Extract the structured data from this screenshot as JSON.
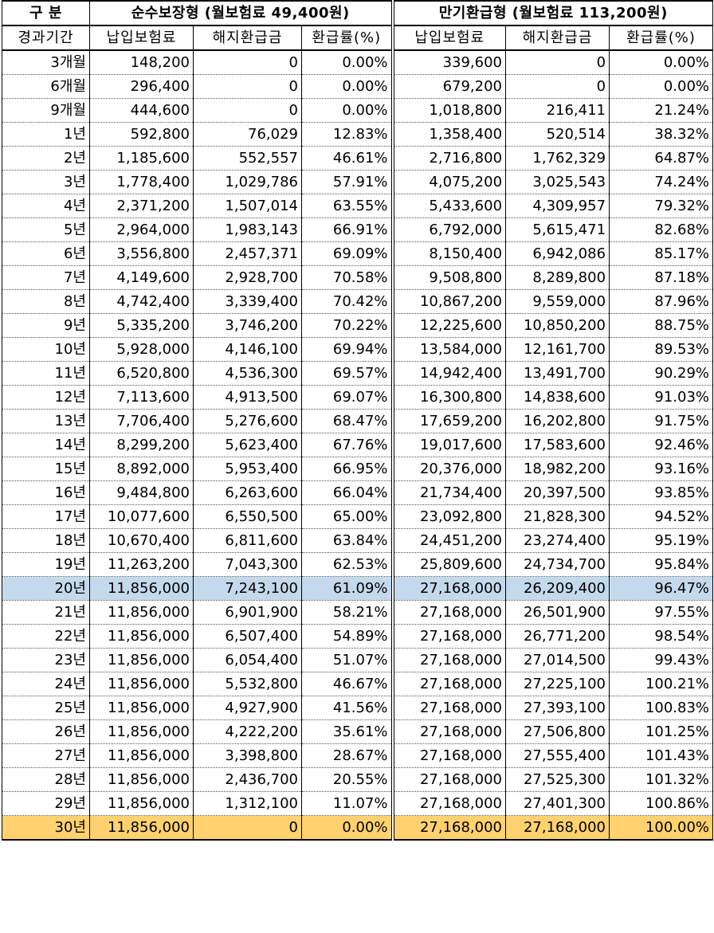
{
  "header": {
    "category_label": "구 분",
    "plan1_title": "순수보장형 (월보험료 49,400원)",
    "plan2_title": "만기환급형 (월보험료 113,200원)",
    "period_label": "경과기간",
    "plan1_cols": [
      "납입보험료",
      "해지환급금",
      "환급률(%)"
    ],
    "plan2_cols": [
      "납입보험료",
      "해지환급금",
      "환급률(%)"
    ]
  },
  "highlight_colors": {
    "row_20y": "#c5d9ec",
    "row_30y": "#ffd16f"
  },
  "rows": [
    {
      "period": "3개월",
      "p1_paid": "148,200",
      "p1_refund": "0",
      "p1_rate": "0.00%",
      "p2_paid": "339,600",
      "p2_refund": "0",
      "p2_rate": "0.00%"
    },
    {
      "period": "6개월",
      "p1_paid": "296,400",
      "p1_refund": "0",
      "p1_rate": "0.00%",
      "p2_paid": "679,200",
      "p2_refund": "0",
      "p2_rate": "0.00%"
    },
    {
      "period": "9개월",
      "p1_paid": "444,600",
      "p1_refund": "0",
      "p1_rate": "0.00%",
      "p2_paid": "1,018,800",
      "p2_refund": "216,411",
      "p2_rate": "21.24%"
    },
    {
      "period": "1년",
      "p1_paid": "592,800",
      "p1_refund": "76,029",
      "p1_rate": "12.83%",
      "p2_paid": "1,358,400",
      "p2_refund": "520,514",
      "p2_rate": "38.32%"
    },
    {
      "period": "2년",
      "p1_paid": "1,185,600",
      "p1_refund": "552,557",
      "p1_rate": "46.61%",
      "p2_paid": "2,716,800",
      "p2_refund": "1,762,329",
      "p2_rate": "64.87%"
    },
    {
      "period": "3년",
      "p1_paid": "1,778,400",
      "p1_refund": "1,029,786",
      "p1_rate": "57.91%",
      "p2_paid": "4,075,200",
      "p2_refund": "3,025,543",
      "p2_rate": "74.24%"
    },
    {
      "period": "4년",
      "p1_paid": "2,371,200",
      "p1_refund": "1,507,014",
      "p1_rate": "63.55%",
      "p2_paid": "5,433,600",
      "p2_refund": "4,309,957",
      "p2_rate": "79.32%"
    },
    {
      "period": "5년",
      "p1_paid": "2,964,000",
      "p1_refund": "1,983,143",
      "p1_rate": "66.91%",
      "p2_paid": "6,792,000",
      "p2_refund": "5,615,471",
      "p2_rate": "82.68%"
    },
    {
      "period": "6년",
      "p1_paid": "3,556,800",
      "p1_refund": "2,457,371",
      "p1_rate": "69.09%",
      "p2_paid": "8,150,400",
      "p2_refund": "6,942,086",
      "p2_rate": "85.17%"
    },
    {
      "period": "7년",
      "p1_paid": "4,149,600",
      "p1_refund": "2,928,700",
      "p1_rate": "70.58%",
      "p2_paid": "9,508,800",
      "p2_refund": "8,289,800",
      "p2_rate": "87.18%"
    },
    {
      "period": "8년",
      "p1_paid": "4,742,400",
      "p1_refund": "3,339,400",
      "p1_rate": "70.42%",
      "p2_paid": "10,867,200",
      "p2_refund": "9,559,000",
      "p2_rate": "87.96%"
    },
    {
      "period": "9년",
      "p1_paid": "5,335,200",
      "p1_refund": "3,746,200",
      "p1_rate": "70.22%",
      "p2_paid": "12,225,600",
      "p2_refund": "10,850,200",
      "p2_rate": "88.75%"
    },
    {
      "period": "10년",
      "p1_paid": "5,928,000",
      "p1_refund": "4,146,100",
      "p1_rate": "69.94%",
      "p2_paid": "13,584,000",
      "p2_refund": "12,161,700",
      "p2_rate": "89.53%"
    },
    {
      "period": "11년",
      "p1_paid": "6,520,800",
      "p1_refund": "4,536,300",
      "p1_rate": "69.57%",
      "p2_paid": "14,942,400",
      "p2_refund": "13,491,700",
      "p2_rate": "90.29%"
    },
    {
      "period": "12년",
      "p1_paid": "7,113,600",
      "p1_refund": "4,913,500",
      "p1_rate": "69.07%",
      "p2_paid": "16,300,800",
      "p2_refund": "14,838,600",
      "p2_rate": "91.03%"
    },
    {
      "period": "13년",
      "p1_paid": "7,706,400",
      "p1_refund": "5,276,600",
      "p1_rate": "68.47%",
      "p2_paid": "17,659,200",
      "p2_refund": "16,202,800",
      "p2_rate": "91.75%"
    },
    {
      "period": "14년",
      "p1_paid": "8,299,200",
      "p1_refund": "5,623,400",
      "p1_rate": "67.76%",
      "p2_paid": "19,017,600",
      "p2_refund": "17,583,600",
      "p2_rate": "92.46%"
    },
    {
      "period": "15년",
      "p1_paid": "8,892,000",
      "p1_refund": "5,953,400",
      "p1_rate": "66.95%",
      "p2_paid": "20,376,000",
      "p2_refund": "18,982,200",
      "p2_rate": "93.16%"
    },
    {
      "period": "16년",
      "p1_paid": "9,484,800",
      "p1_refund": "6,263,600",
      "p1_rate": "66.04%",
      "p2_paid": "21,734,400",
      "p2_refund": "20,397,500",
      "p2_rate": "93.85%"
    },
    {
      "period": "17년",
      "p1_paid": "10,077,600",
      "p1_refund": "6,550,500",
      "p1_rate": "65.00%",
      "p2_paid": "23,092,800",
      "p2_refund": "21,828,300",
      "p2_rate": "94.52%"
    },
    {
      "period": "18년",
      "p1_paid": "10,670,400",
      "p1_refund": "6,811,600",
      "p1_rate": "63.84%",
      "p2_paid": "24,451,200",
      "p2_refund": "23,274,400",
      "p2_rate": "95.19%"
    },
    {
      "period": "19년",
      "p1_paid": "11,263,200",
      "p1_refund": "7,043,300",
      "p1_rate": "62.53%",
      "p2_paid": "25,809,600",
      "p2_refund": "24,734,700",
      "p2_rate": "95.84%"
    },
    {
      "period": "20년",
      "p1_paid": "11,856,000",
      "p1_refund": "7,243,100",
      "p1_rate": "61.09%",
      "p2_paid": "27,168,000",
      "p2_refund": "26,209,400",
      "p2_rate": "96.47%",
      "highlight": "blue"
    },
    {
      "period": "21년",
      "p1_paid": "11,856,000",
      "p1_refund": "6,901,900",
      "p1_rate": "58.21%",
      "p2_paid": "27,168,000",
      "p2_refund": "26,501,900",
      "p2_rate": "97.55%"
    },
    {
      "period": "22년",
      "p1_paid": "11,856,000",
      "p1_refund": "6,507,400",
      "p1_rate": "54.89%",
      "p2_paid": "27,168,000",
      "p2_refund": "26,771,200",
      "p2_rate": "98.54%"
    },
    {
      "period": "23년",
      "p1_paid": "11,856,000",
      "p1_refund": "6,054,400",
      "p1_rate": "51.07%",
      "p2_paid": "27,168,000",
      "p2_refund": "27,014,500",
      "p2_rate": "99.43%"
    },
    {
      "period": "24년",
      "p1_paid": "11,856,000",
      "p1_refund": "5,532,800",
      "p1_rate": "46.67%",
      "p2_paid": "27,168,000",
      "p2_refund": "27,225,100",
      "p2_rate": "100.21%"
    },
    {
      "period": "25년",
      "p1_paid": "11,856,000",
      "p1_refund": "4,927,900",
      "p1_rate": "41.56%",
      "p2_paid": "27,168,000",
      "p2_refund": "27,393,100",
      "p2_rate": "100.83%"
    },
    {
      "period": "26년",
      "p1_paid": "11,856,000",
      "p1_refund": "4,222,200",
      "p1_rate": "35.61%",
      "p2_paid": "27,168,000",
      "p2_refund": "27,506,800",
      "p2_rate": "101.25%"
    },
    {
      "period": "27년",
      "p1_paid": "11,856,000",
      "p1_refund": "3,398,800",
      "p1_rate": "28.67%",
      "p2_paid": "27,168,000",
      "p2_refund": "27,555,400",
      "p2_rate": "101.43%"
    },
    {
      "period": "28년",
      "p1_paid": "11,856,000",
      "p1_refund": "2,436,700",
      "p1_rate": "20.55%",
      "p2_paid": "27,168,000",
      "p2_refund": "27,525,300",
      "p2_rate": "101.32%"
    },
    {
      "period": "29년",
      "p1_paid": "11,856,000",
      "p1_refund": "1,312,100",
      "p1_rate": "11.07%",
      "p2_paid": "27,168,000",
      "p2_refund": "27,401,300",
      "p2_rate": "100.86%"
    },
    {
      "period": "30년",
      "p1_paid": "11,856,000",
      "p1_refund": "0",
      "p1_rate": "0.00%",
      "p2_paid": "27,168,000",
      "p2_refund": "27,168,000",
      "p2_rate": "100.00%",
      "highlight": "yellow"
    }
  ]
}
